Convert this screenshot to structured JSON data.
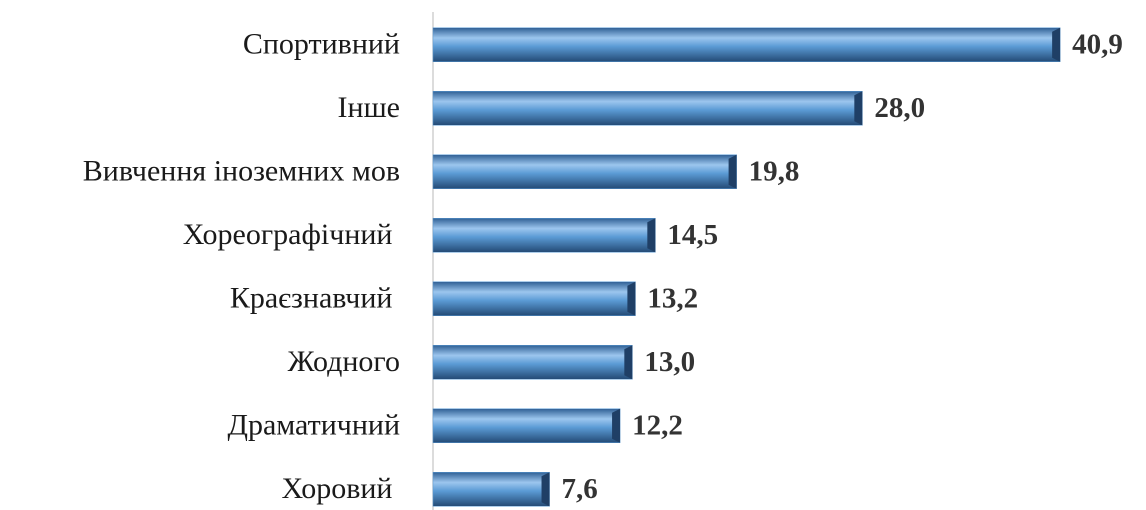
{
  "chart_data": {
    "type": "bar",
    "orientation": "horizontal",
    "categories": [
      "Спортивний",
      "Інше",
      "Вивчення іноземних мов",
      "Хореографічний ",
      "Краєзнавчий ",
      "Жодного",
      "Драматичний",
      "Хоровий "
    ],
    "values": [
      40.9,
      28.0,
      19.8,
      14.5,
      13.2,
      13.0,
      12.2,
      7.6
    ],
    "value_labels": [
      "40,9",
      "28,0",
      "19,8",
      "14,5",
      "13,2",
      "13,0",
      "12,2",
      "7,6"
    ],
    "color": "#5b9bd5",
    "xlim": [
      0,
      45
    ]
  }
}
